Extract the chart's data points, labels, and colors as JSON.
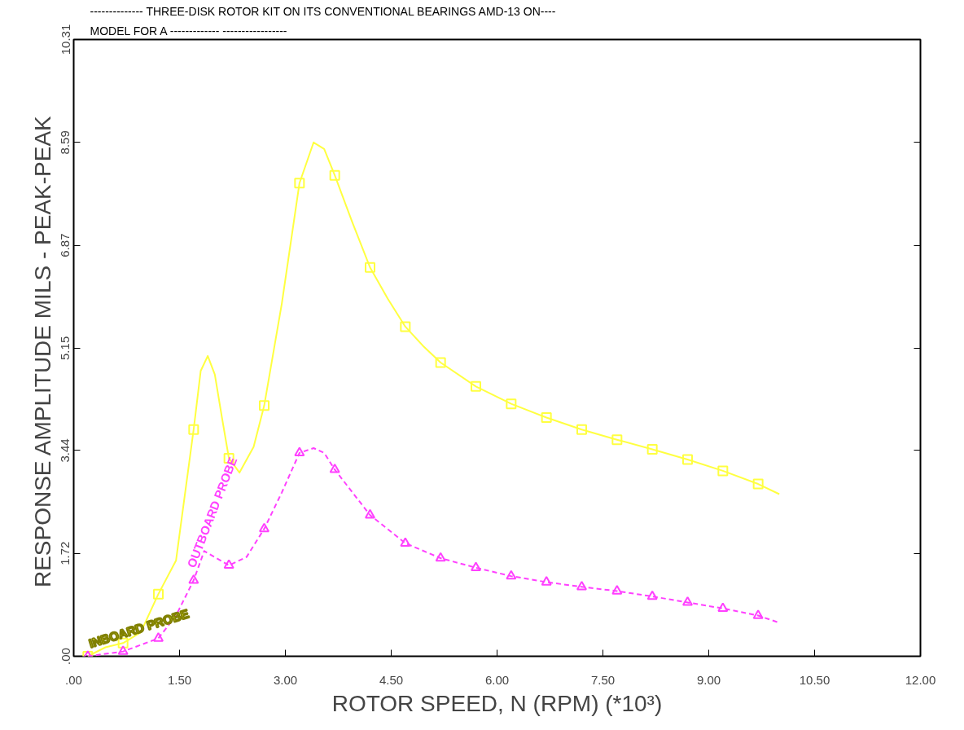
{
  "chart_data": {
    "type": "line",
    "title": "-------------- THREE-DISK ROTOR KIT ON ITS CONVENTIONAL BEARINGS AMD-13 ON----",
    "subtitle": "MODEL FOR A     -------------          -----------------",
    "xlabel": "ROTOR SPEED, N (RPM) (*10³)",
    "ylabel": "RESPONSE AMPLITUDE  MILS - PEAK-PEAK",
    "xlim": [
      0,
      12
    ],
    "xticks": [
      {
        "value": 0,
        "label": ".00"
      },
      {
        "value": 1.5,
        "label": "1.50"
      },
      {
        "value": 3,
        "label": "3.00"
      },
      {
        "value": 4.5,
        "label": "4.50"
      },
      {
        "value": 6,
        "label": "6.00"
      },
      {
        "value": 7.5,
        "label": "7.50"
      },
      {
        "value": 9,
        "label": "9.00"
      },
      {
        "value": 10.5,
        "label": "10.50"
      },
      {
        "value": 12,
        "label": "12.00"
      }
    ],
    "ylim": [
      0,
      10.31
    ],
    "yticks": [
      {
        "value": 0,
        "label": ".00"
      },
      1.72,
      3.44,
      5.15,
      6.87,
      8.59,
      10.31
    ],
    "grid": false,
    "series": [
      {
        "color": "#ffff40",
        "marker": "none",
        "line_style": "solid",
        "x": [
          0.2,
          0.45,
          0.7,
          0.95,
          1.2,
          1.45,
          1.7,
          1.8,
          1.9,
          2.0,
          2.1,
          2.2,
          2.35,
          2.55,
          2.7,
          2.95,
          3.2,
          3.4,
          3.55,
          3.7,
          3.95,
          4.2,
          4.45,
          4.7,
          4.95,
          5.2,
          5.7,
          6.2,
          6.7,
          7.2,
          7.7,
          8.2,
          8.7,
          9.2,
          9.7,
          10.0
        ],
        "values": [
          0,
          0.15,
          0.22,
          0.4,
          1.04,
          1.6,
          3.79,
          4.77,
          5.02,
          4.71,
          4.0,
          3.31,
          3.07,
          3.5,
          4.19,
          5.9,
          7.91,
          8.59,
          8.48,
          8.04,
          7.25,
          6.5,
          5.98,
          5.51,
          5.19,
          4.91,
          4.51,
          4.22,
          3.99,
          3.79,
          3.62,
          3.46,
          3.29,
          3.1,
          2.88,
          2.71
        ]
      },
      {
        "type": "scatter",
        "color": "#ffff40",
        "marker": "square",
        "x": [
          0.2,
          0.7,
          1.2,
          1.7,
          2.2,
          2.7,
          3.2,
          3.7,
          4.2,
          4.7,
          5.2,
          5.7,
          6.2,
          6.7,
          7.2,
          7.7,
          8.2,
          8.7,
          9.2,
          9.7
        ],
        "values": [
          0,
          0.22,
          1.04,
          3.79,
          3.31,
          4.19,
          7.91,
          8.04,
          6.5,
          5.51,
          4.91,
          4.51,
          4.22,
          3.99,
          3.79,
          3.62,
          3.46,
          3.29,
          3.1,
          2.88
        ]
      },
      {
        "color": "#ff40ff",
        "marker": "none",
        "line_style": "dashed",
        "x": [
          0.2,
          0.7,
          1.2,
          1.45,
          1.7,
          1.85,
          2.2,
          2.45,
          2.7,
          2.95,
          3.2,
          3.4,
          3.55,
          3.7,
          3.95,
          4.2,
          4.7,
          5.2,
          5.7,
          6.2,
          6.7,
          7.2,
          7.7,
          8.2,
          8.7,
          9.2,
          9.7,
          10.0
        ],
        "values": [
          0,
          0.08,
          0.3,
          0.68,
          1.27,
          1.76,
          1.52,
          1.66,
          2.13,
          2.74,
          3.4,
          3.48,
          3.4,
          3.12,
          2.74,
          2.36,
          1.89,
          1.64,
          1.48,
          1.34,
          1.24,
          1.16,
          1.09,
          1.0,
          0.9,
          0.8,
          0.68,
          0.56
        ]
      },
      {
        "type": "scatter",
        "color": "#ff40ff",
        "marker": "triangle",
        "x": [
          0.2,
          0.7,
          1.2,
          1.7,
          2.2,
          2.7,
          3.2,
          3.7,
          4.2,
          4.7,
          5.2,
          5.7,
          6.2,
          6.7,
          7.2,
          7.7,
          8.2,
          8.7,
          9.2,
          9.7
        ],
        "values": [
          0,
          0.08,
          0.3,
          1.27,
          1.52,
          2.13,
          3.4,
          3.12,
          2.36,
          1.89,
          1.64,
          1.48,
          1.34,
          1.24,
          1.16,
          1.09,
          1.0,
          0.9,
          0.8,
          0.68
        ]
      }
    ],
    "annotations": [
      {
        "text": "INBOARD PROBE",
        "x": 0.25,
        "y": 0.1
      },
      {
        "text": "OUTBOARD PROBE",
        "x": 1.75,
        "y": 1.45
      }
    ]
  }
}
